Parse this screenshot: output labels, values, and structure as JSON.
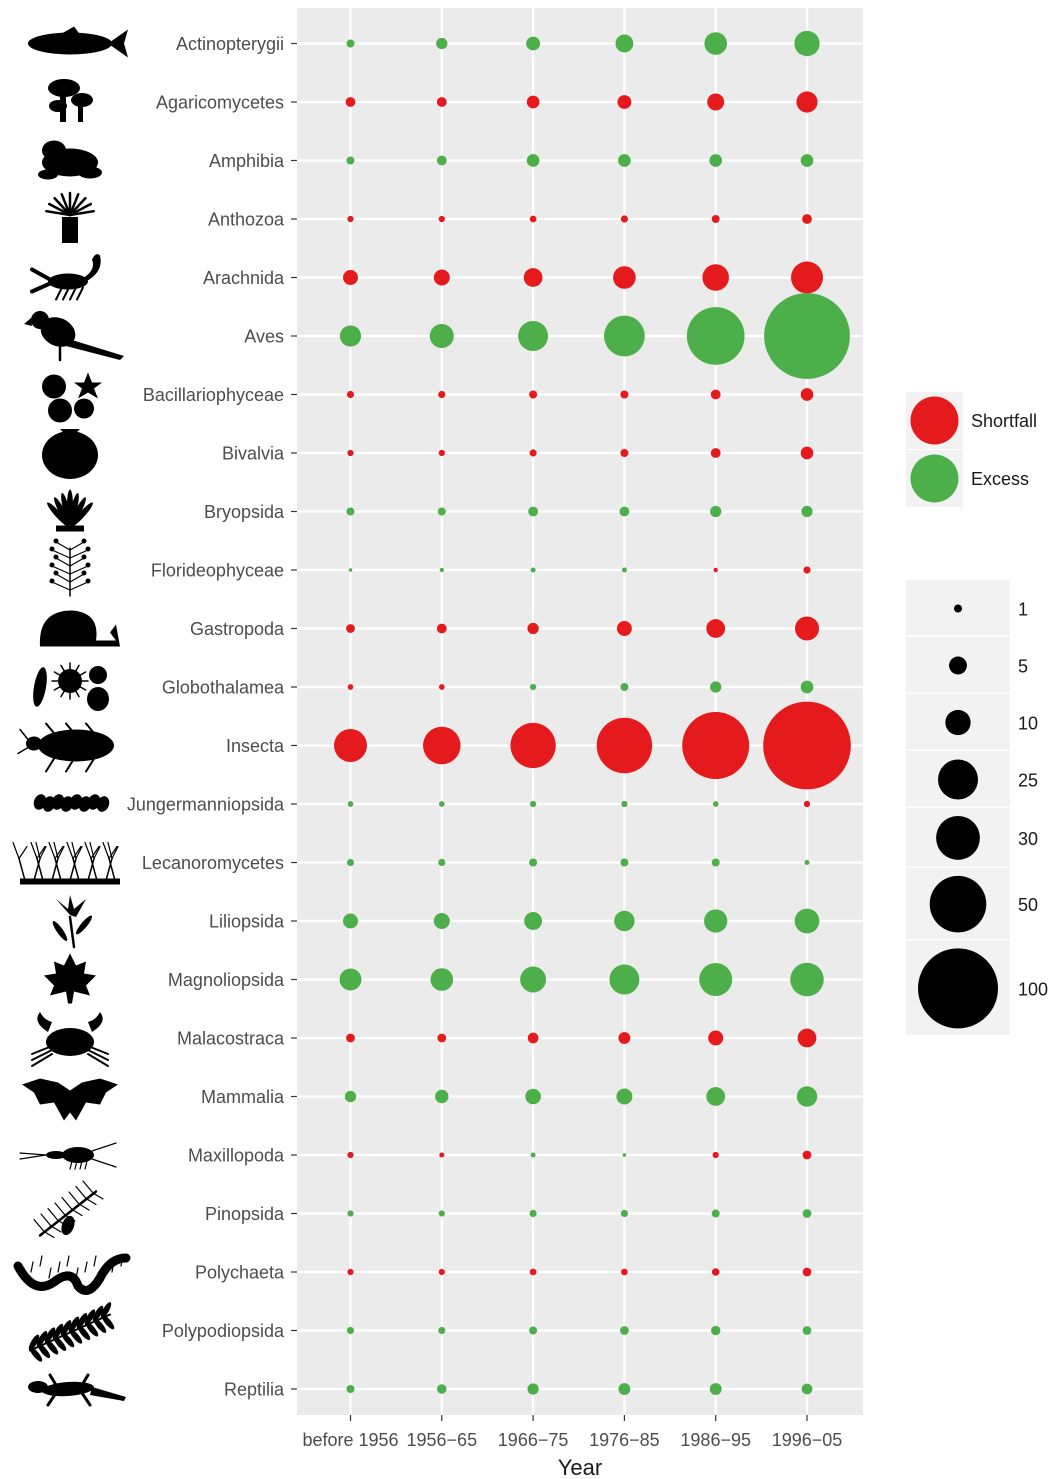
{
  "chart_data": {
    "type": "scatter",
    "subtype": "bubble",
    "title": "",
    "xlabel": "Year",
    "ylabel": "",
    "grid": true,
    "legend_position": "right",
    "x_categories": [
      "before 1956",
      "1956−65",
      "1966−75",
      "1976−85",
      "1986−95",
      "1996−05"
    ],
    "y_categories": [
      "Actinopterygii",
      "Agaricomycetes",
      "Amphibia",
      "Anthozoa",
      "Arachnida",
      "Aves",
      "Bacillariophyceae",
      "Bivalvia",
      "Bryopsida",
      "Florideophyceae",
      "Gastropoda",
      "Globothalamea",
      "Insecta",
      "Jungermanniopsida",
      "Lecanoromycetes",
      "Liliopsida",
      "Magnoliopsida",
      "Malacostraca",
      "Mammalia",
      "Maxillopoda",
      "Pinopsida",
      "Polychaeta",
      "Polypodiopsida",
      "Reptilia"
    ],
    "colors": {
      "Shortfall": "#e41a1c",
      "Excess": "#4daf4a"
    },
    "color_legend": [
      "Shortfall",
      "Excess"
    ],
    "size_legend": [
      1,
      5,
      10,
      25,
      30,
      50,
      100
    ],
    "rows": [
      {
        "taxon": "Actinopterygii",
        "sizes": [
          1,
          2,
          3,
          5,
          8,
          10
        ],
        "status": [
          "Excess",
          "Excess",
          "Excess",
          "Excess",
          "Excess",
          "Excess"
        ]
      },
      {
        "taxon": "Agaricomycetes",
        "sizes": [
          1.5,
          1.5,
          2.5,
          3,
          4.5,
          7
        ],
        "status": [
          "Shortfall",
          "Shortfall",
          "Shortfall",
          "Shortfall",
          "Shortfall",
          "Shortfall"
        ]
      },
      {
        "taxon": "Amphibia",
        "sizes": [
          1,
          1.5,
          2.5,
          2.5,
          2.5,
          2.5
        ],
        "status": [
          "Excess",
          "Excess",
          "Excess",
          "Excess",
          "Excess",
          "Excess"
        ]
      },
      {
        "taxon": "Anthozoa",
        "sizes": [
          0.6,
          0.6,
          0.7,
          0.8,
          1,
          1.5
        ],
        "status": [
          "Shortfall",
          "Shortfall",
          "Shortfall",
          "Shortfall",
          "Shortfall",
          "Shortfall"
        ]
      },
      {
        "taxon": "Arachnida",
        "sizes": [
          3.5,
          4,
          5.5,
          8,
          11,
          16
        ],
        "status": [
          "Shortfall",
          "Shortfall",
          "Shortfall",
          "Shortfall",
          "Shortfall",
          "Shortfall"
        ]
      },
      {
        "taxon": "Aves",
        "sizes": [
          7,
          9,
          14,
          26,
          52,
          115
        ],
        "status": [
          "Excess",
          "Excess",
          "Excess",
          "Excess",
          "Excess",
          "Excess"
        ]
      },
      {
        "taxon": "Bacillariophyceae",
        "sizes": [
          0.8,
          0.8,
          1,
          1,
          1.5,
          2.5
        ],
        "status": [
          "Shortfall",
          "Shortfall",
          "Shortfall",
          "Shortfall",
          "Shortfall",
          "Shortfall"
        ]
      },
      {
        "taxon": "Bivalvia",
        "sizes": [
          0.6,
          0.6,
          0.8,
          1,
          1.5,
          2.5
        ],
        "status": [
          "Shortfall",
          "Shortfall",
          "Shortfall",
          "Shortfall",
          "Shortfall",
          "Shortfall"
        ]
      },
      {
        "taxon": "Bryopsida",
        "sizes": [
          1,
          1,
          1.5,
          1.5,
          2,
          2
        ],
        "status": [
          "Excess",
          "Excess",
          "Excess",
          "Excess",
          "Excess",
          "Excess"
        ]
      },
      {
        "taxon": "Florideophyceae",
        "sizes": [
          0.2,
          0.3,
          0.4,
          0.4,
          0.3,
          0.8
        ],
        "status": [
          "Excess",
          "Excess",
          "Excess",
          "Excess",
          "Shortfall",
          "Shortfall"
        ]
      },
      {
        "taxon": "Gastropoda",
        "sizes": [
          1.2,
          1.5,
          2,
          3.5,
          5.5,
          9
        ],
        "status": [
          "Shortfall",
          "Shortfall",
          "Shortfall",
          "Shortfall",
          "Shortfall",
          "Shortfall"
        ]
      },
      {
        "taxon": "Globothalamea",
        "sizes": [
          0.5,
          0.5,
          0.6,
          1,
          2,
          2.5
        ],
        "status": [
          "Shortfall",
          "Shortfall",
          "Excess",
          "Excess",
          "Excess",
          "Excess"
        ]
      },
      {
        "taxon": "Insecta",
        "sizes": [
          17,
          22,
          32,
          48,
          70,
          120
        ],
        "status": [
          "Shortfall",
          "Shortfall",
          "Shortfall",
          "Shortfall",
          "Shortfall",
          "Shortfall"
        ]
      },
      {
        "taxon": "Jungermanniopsida",
        "sizes": [
          0.5,
          0.5,
          0.6,
          0.6,
          0.5,
          0.6
        ],
        "status": [
          "Excess",
          "Excess",
          "Excess",
          "Excess",
          "Excess",
          "Shortfall"
        ]
      },
      {
        "taxon": "Lecanoromycetes",
        "sizes": [
          0.8,
          0.8,
          1,
          1,
          1,
          0.4
        ],
        "status": [
          "Excess",
          "Excess",
          "Excess",
          "Excess",
          "Excess",
          "Excess"
        ]
      },
      {
        "taxon": "Liliopsida",
        "sizes": [
          3.5,
          4,
          5,
          6.5,
          8.5,
          9.5
        ],
        "status": [
          "Excess",
          "Excess",
          "Excess",
          "Excess",
          "Excess",
          "Excess"
        ]
      },
      {
        "taxon": "Magnoliopsida",
        "sizes": [
          7.5,
          8,
          10.5,
          14,
          17,
          17.5
        ],
        "status": [
          "Excess",
          "Excess",
          "Excess",
          "Excess",
          "Excess",
          "Excess"
        ]
      },
      {
        "taxon": "Malacostraca",
        "sizes": [
          1.2,
          1.2,
          1.8,
          2.2,
          3.5,
          5.5
        ],
        "status": [
          "Shortfall",
          "Shortfall",
          "Shortfall",
          "Shortfall",
          "Shortfall",
          "Shortfall"
        ]
      },
      {
        "taxon": "Mammalia",
        "sizes": [
          2,
          2.8,
          3.8,
          4,
          5.5,
          6.5
        ],
        "status": [
          "Excess",
          "Excess",
          "Excess",
          "Excess",
          "Excess",
          "Excess"
        ]
      },
      {
        "taxon": "Maxillopoda",
        "sizes": [
          0.6,
          0.4,
          0.4,
          0.2,
          0.6,
          1.2
        ],
        "status": [
          "Shortfall",
          "Shortfall",
          "Excess",
          "Excess",
          "Shortfall",
          "Shortfall"
        ]
      },
      {
        "taxon": "Pinopsida",
        "sizes": [
          0.6,
          0.6,
          0.8,
          0.8,
          1,
          1.2
        ],
        "status": [
          "Excess",
          "Excess",
          "Excess",
          "Excess",
          "Excess",
          "Excess"
        ]
      },
      {
        "taxon": "Polychaeta",
        "sizes": [
          0.6,
          0.6,
          0.7,
          0.7,
          0.9,
          1.2
        ],
        "status": [
          "Shortfall",
          "Shortfall",
          "Shortfall",
          "Shortfall",
          "Shortfall",
          "Shortfall"
        ]
      },
      {
        "taxon": "Polypodiopsida",
        "sizes": [
          0.8,
          0.8,
          1,
          1.2,
          1.4,
          1.2
        ],
        "status": [
          "Excess",
          "Excess",
          "Excess",
          "Excess",
          "Excess",
          "Excess"
        ]
      },
      {
        "taxon": "Reptilia",
        "sizes": [
          1,
          1.4,
          2,
          2.2,
          2.2,
          1.8
        ],
        "status": [
          "Excess",
          "Excess",
          "Excess",
          "Excess",
          "Excess",
          "Excess"
        ]
      }
    ],
    "silhouettes": [
      "fish-icon",
      "mushroom-icon",
      "frog-icon",
      "sea-anemone-icon",
      "scorpion-icon",
      "parrot-icon",
      "diatom-icon",
      "clam-shell-icon",
      "moss-icon",
      "red-alga-icon",
      "snail-icon",
      "foraminifera-icon",
      "beetle-icon",
      "liverwort-icon",
      "lichen-icon",
      "lily-icon",
      "maple-leaf-icon",
      "crab-icon",
      "bat-icon",
      "copepod-icon",
      "pine-icon",
      "polychaete-worm-icon",
      "fern-icon",
      "lizard-icon"
    ]
  }
}
